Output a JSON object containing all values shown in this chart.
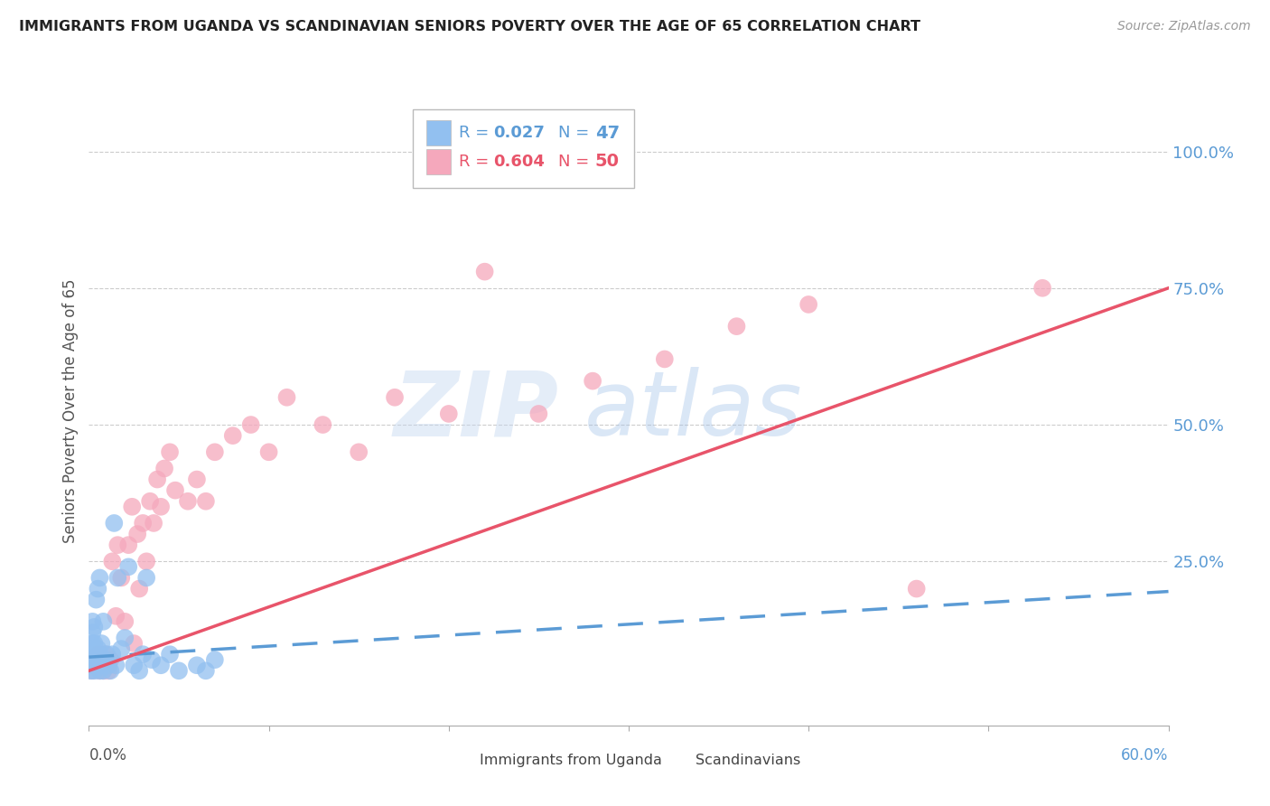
{
  "title": "IMMIGRANTS FROM UGANDA VS SCANDINAVIAN SENIORS POVERTY OVER THE AGE OF 65 CORRELATION CHART",
  "source": "Source: ZipAtlas.com",
  "ylabel": "Seniors Poverty Over the Age of 65",
  "xlim": [
    0.0,
    0.6
  ],
  "ylim": [
    -0.05,
    1.1
  ],
  "watermark_zip": "ZIP",
  "watermark_atlas": "atlas",
  "uganda_R": 0.027,
  "uganda_N": 47,
  "scandinavian_R": 0.604,
  "scandinavian_N": 50,
  "uganda_color": "#92c0f0",
  "scandinavian_color": "#f5a8bc",
  "uganda_line_color": "#5b9bd5",
  "scandinavian_line_color": "#e8546a",
  "uganda_x": [
    0.001,
    0.001,
    0.001,
    0.002,
    0.002,
    0.002,
    0.002,
    0.002,
    0.003,
    0.003,
    0.003,
    0.003,
    0.004,
    0.004,
    0.004,
    0.005,
    0.005,
    0.005,
    0.006,
    0.006,
    0.006,
    0.007,
    0.007,
    0.008,
    0.008,
    0.009,
    0.01,
    0.011,
    0.012,
    0.013,
    0.014,
    0.015,
    0.016,
    0.018,
    0.02,
    0.022,
    0.025,
    0.028,
    0.03,
    0.032,
    0.035,
    0.04,
    0.045,
    0.05,
    0.06,
    0.065,
    0.07
  ],
  "uganda_y": [
    0.05,
    0.07,
    0.09,
    0.06,
    0.08,
    0.1,
    0.12,
    0.14,
    0.05,
    0.07,
    0.1,
    0.13,
    0.06,
    0.08,
    0.18,
    0.07,
    0.09,
    0.2,
    0.05,
    0.08,
    0.22,
    0.06,
    0.1,
    0.05,
    0.14,
    0.07,
    0.08,
    0.06,
    0.05,
    0.08,
    0.32,
    0.06,
    0.22,
    0.09,
    0.11,
    0.24,
    0.06,
    0.05,
    0.08,
    0.22,
    0.07,
    0.06,
    0.08,
    0.05,
    0.06,
    0.05,
    0.07
  ],
  "scandinavian_x": [
    0.002,
    0.003,
    0.004,
    0.005,
    0.006,
    0.007,
    0.008,
    0.009,
    0.01,
    0.011,
    0.012,
    0.013,
    0.015,
    0.016,
    0.018,
    0.02,
    0.022,
    0.024,
    0.025,
    0.027,
    0.028,
    0.03,
    0.032,
    0.034,
    0.036,
    0.038,
    0.04,
    0.042,
    0.045,
    0.048,
    0.055,
    0.06,
    0.065,
    0.07,
    0.08,
    0.09,
    0.1,
    0.11,
    0.13,
    0.15,
    0.17,
    0.2,
    0.22,
    0.25,
    0.28,
    0.32,
    0.36,
    0.4,
    0.46,
    0.53
  ],
  "scandinavian_y": [
    0.05,
    0.07,
    0.06,
    0.08,
    0.05,
    0.06,
    0.05,
    0.08,
    0.06,
    0.05,
    0.07,
    0.25,
    0.15,
    0.28,
    0.22,
    0.14,
    0.28,
    0.35,
    0.1,
    0.3,
    0.2,
    0.32,
    0.25,
    0.36,
    0.32,
    0.4,
    0.35,
    0.42,
    0.45,
    0.38,
    0.36,
    0.4,
    0.36,
    0.45,
    0.48,
    0.5,
    0.45,
    0.55,
    0.5,
    0.45,
    0.55,
    0.52,
    0.78,
    0.52,
    0.58,
    0.62,
    0.68,
    0.72,
    0.2,
    0.75
  ],
  "background_color": "#ffffff",
  "grid_color": "#cccccc",
  "title_color": "#222222",
  "source_color": "#999999",
  "axis_label_color": "#555555",
  "tick_color_right": "#5b9bd5"
}
